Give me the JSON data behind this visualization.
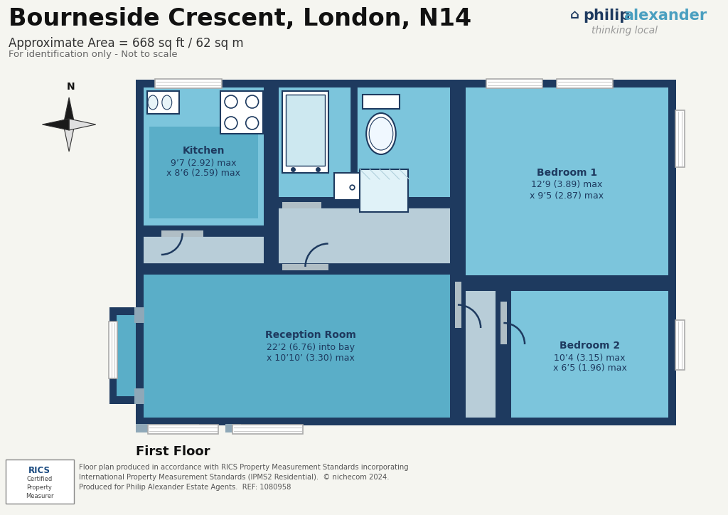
{
  "title": "Bourneside Crescent, London, N14",
  "subtitle": "Approximate Area = 668 sq ft / 62 sq m",
  "subtitle2": "For identification only - Not to scale",
  "floor_label": "First Floor",
  "bg_color": "#f5f5f0",
  "wall_color": "#1e3a5f",
  "room_fill_light": "#7cc5dc",
  "room_fill_mid": "#5aaec8",
  "room_fill_kitchen": "#6bbdd6",
  "room_fill_landing": "#b8cdd8",
  "pa_blue": "#4a9fc0",
  "pa_dark": "#1e3a5f",
  "text_dark": "#1e3a5f",
  "footer_text": "Floor plan produced in accordance with RICS Property Measurement Standards incorporating\nInternational Property Measurement Standards (IPMS2 Residential).  © nichecom 2024.\nProduced for Philip Alexander Estate Agents.  REF: 1080958",
  "kitchen_label": "Kitchen",
  "kitchen_dim1": "9’7 (2.92) max",
  "kitchen_dim2": "x 8’6 (2.59) max",
  "bed1_label": "Bedroom 1",
  "bed1_dim1": "12’9 (3.89) max",
  "bed1_dim2": "x 9’5 (2.87) max",
  "bed2_label": "Bedroom 2",
  "bed2_dim1": "10’4 (3.15) max",
  "bed2_dim2": "x 6’5 (1.96) max",
  "recep_label": "Reception Room",
  "recep_dim1": "22’2 (6.76) into bay",
  "recep_dim2": "x 10’10’ (3.30) max"
}
